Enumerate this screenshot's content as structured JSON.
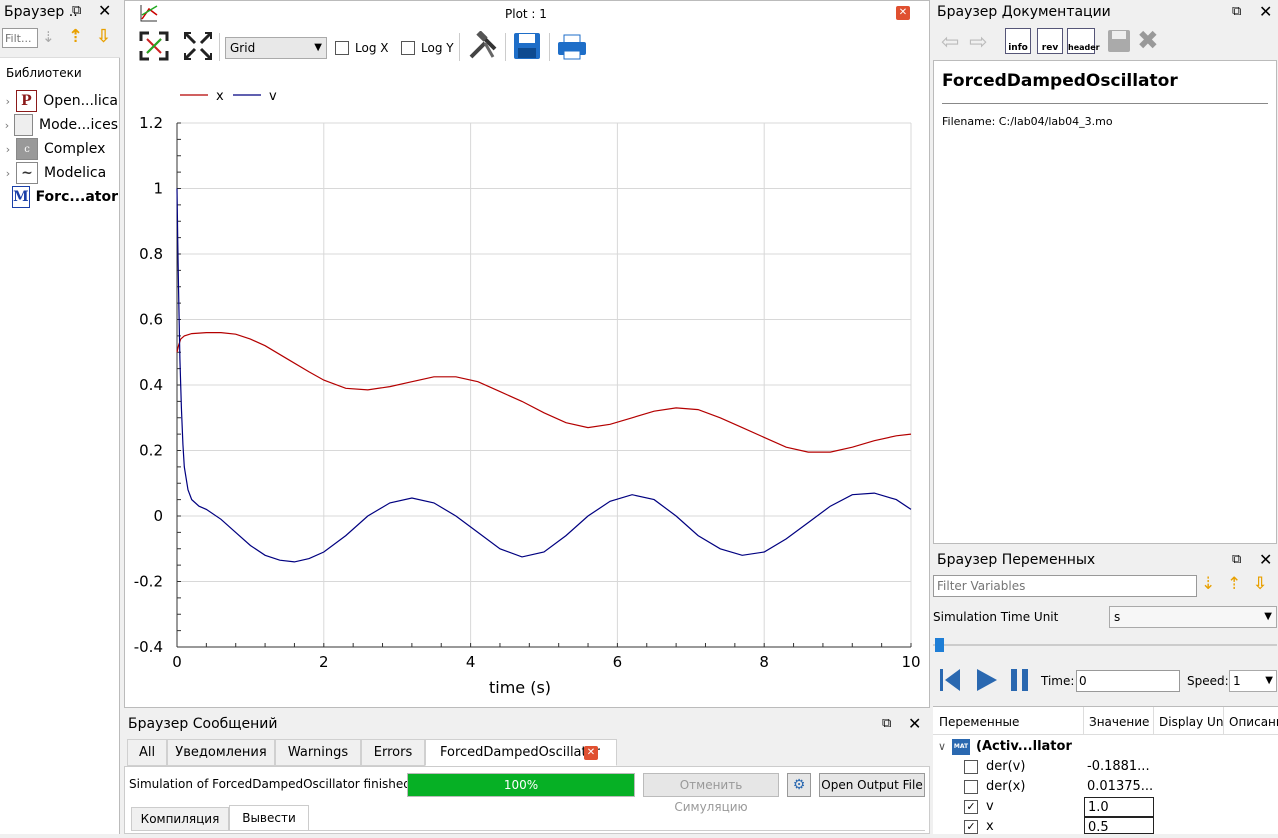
{
  "left_panel": {
    "title": "Браузер ..",
    "filter_placeholder": "Filt...",
    "libraries_label": "Библиотеки",
    "items": [
      {
        "label": "Open...lica",
        "icon": "P"
      },
      {
        "label": "Mode...ices",
        "icon": ""
      },
      {
        "label": "Complex",
        "icon": "c"
      },
      {
        "label": "Modelica",
        "icon": "~"
      },
      {
        "label": "Forc...ator",
        "icon": "M"
      }
    ]
  },
  "plot": {
    "window_title": "Plot : 1",
    "grid_option": "Grid",
    "log_x_label": "Log X",
    "log_y_label": "Log Y"
  },
  "chart_data": {
    "type": "line",
    "xlabel": "time (s)",
    "xlim": [
      0,
      10
    ],
    "ylim": [
      -0.4,
      1.2
    ],
    "xticks": [
      "0",
      "2",
      "4",
      "6",
      "8",
      "10"
    ],
    "yticks": [
      "-0.4",
      "-0.2",
      "0",
      "0.2",
      "0.4",
      "0.6",
      "0.8",
      "1",
      "1.2"
    ],
    "grid": true,
    "legend_position": "top-left",
    "series": [
      {
        "name": "x",
        "color": "#b40000",
        "x": [
          0,
          0.02,
          0.05,
          0.1,
          0.2,
          0.4,
          0.6,
          0.8,
          1.0,
          1.2,
          1.5,
          1.8,
          2.0,
          2.3,
          2.6,
          2.9,
          3.2,
          3.5,
          3.8,
          4.1,
          4.4,
          4.7,
          5.0,
          5.3,
          5.6,
          5.9,
          6.2,
          6.5,
          6.8,
          7.1,
          7.4,
          7.7,
          8.0,
          8.3,
          8.6,
          8.9,
          9.2,
          9.5,
          9.8,
          10
        ],
        "y": [
          0.5,
          0.52,
          0.54,
          0.55,
          0.557,
          0.56,
          0.56,
          0.555,
          0.54,
          0.52,
          0.48,
          0.44,
          0.415,
          0.39,
          0.385,
          0.395,
          0.41,
          0.425,
          0.425,
          0.41,
          0.38,
          0.35,
          0.315,
          0.285,
          0.27,
          0.28,
          0.3,
          0.32,
          0.33,
          0.325,
          0.3,
          0.27,
          0.24,
          0.21,
          0.195,
          0.195,
          0.21,
          0.23,
          0.245,
          0.25
        ]
      },
      {
        "name": "v",
        "color": "#000080",
        "x": [
          0,
          0.01,
          0.02,
          0.04,
          0.06,
          0.08,
          0.1,
          0.15,
          0.2,
          0.3,
          0.4,
          0.6,
          0.8,
          1.0,
          1.2,
          1.4,
          1.6,
          1.8,
          2.0,
          2.3,
          2.6,
          2.9,
          3.2,
          3.5,
          3.8,
          4.1,
          4.4,
          4.7,
          5.0,
          5.3,
          5.6,
          5.9,
          6.2,
          6.5,
          6.8,
          7.1,
          7.4,
          7.7,
          8.0,
          8.3,
          8.6,
          8.9,
          9.2,
          9.5,
          9.8,
          10
        ],
        "y": [
          1.0,
          0.85,
          0.7,
          0.48,
          0.33,
          0.22,
          0.15,
          0.08,
          0.05,
          0.03,
          0.02,
          -0.01,
          -0.05,
          -0.09,
          -0.12,
          -0.135,
          -0.14,
          -0.13,
          -0.11,
          -0.06,
          0.0,
          0.04,
          0.055,
          0.04,
          0.0,
          -0.05,
          -0.1,
          -0.125,
          -0.11,
          -0.06,
          0.0,
          0.045,
          0.065,
          0.05,
          0.0,
          -0.06,
          -0.1,
          -0.12,
          -0.11,
          -0.07,
          -0.02,
          0.03,
          0.065,
          0.07,
          0.05,
          0.02
        ]
      }
    ]
  },
  "doc_panel": {
    "title": "Браузер Документации",
    "class_name": "ForcedDampedOscillator",
    "filename": "Filename: C:/lab04/lab04_3.mo",
    "info_label": "info",
    "rev_label": "rev",
    "header_label": "header"
  },
  "var_panel": {
    "title": "Браузер Переменных",
    "filter_placeholder": "Filter Variables",
    "time_unit_label": "Simulation Time Unit",
    "time_unit_value": "s",
    "time_label": "Time:",
    "time_value": "0",
    "speed_label": "Speed:",
    "speed_value": "1",
    "columns": [
      "Переменные",
      "Значение",
      "Display Un",
      "Описани"
    ],
    "root_label": "(Activ...llator",
    "rows": [
      {
        "name": "der(v)",
        "value": "-0.1881...",
        "checked": false
      },
      {
        "name": "der(x)",
        "value": "0.01375...",
        "checked": false
      },
      {
        "name": "v",
        "value": "1.0",
        "checked": true
      },
      {
        "name": "x",
        "value": "0.5",
        "checked": true
      }
    ]
  },
  "messages": {
    "title": "Браузер Сообщений",
    "tabs": [
      "All",
      "Уведомления",
      "Warnings",
      "Errors",
      "ForcedDampedOscillator"
    ],
    "status": "Simulation of ForcedDampedOscillator finished.",
    "progress_text": "100%",
    "progress": 1.0,
    "cancel_label": "Отменить Симуляцию",
    "open_output_label": "Open Output File",
    "sub_tabs": [
      "Компиляция",
      "Вывести"
    ]
  }
}
